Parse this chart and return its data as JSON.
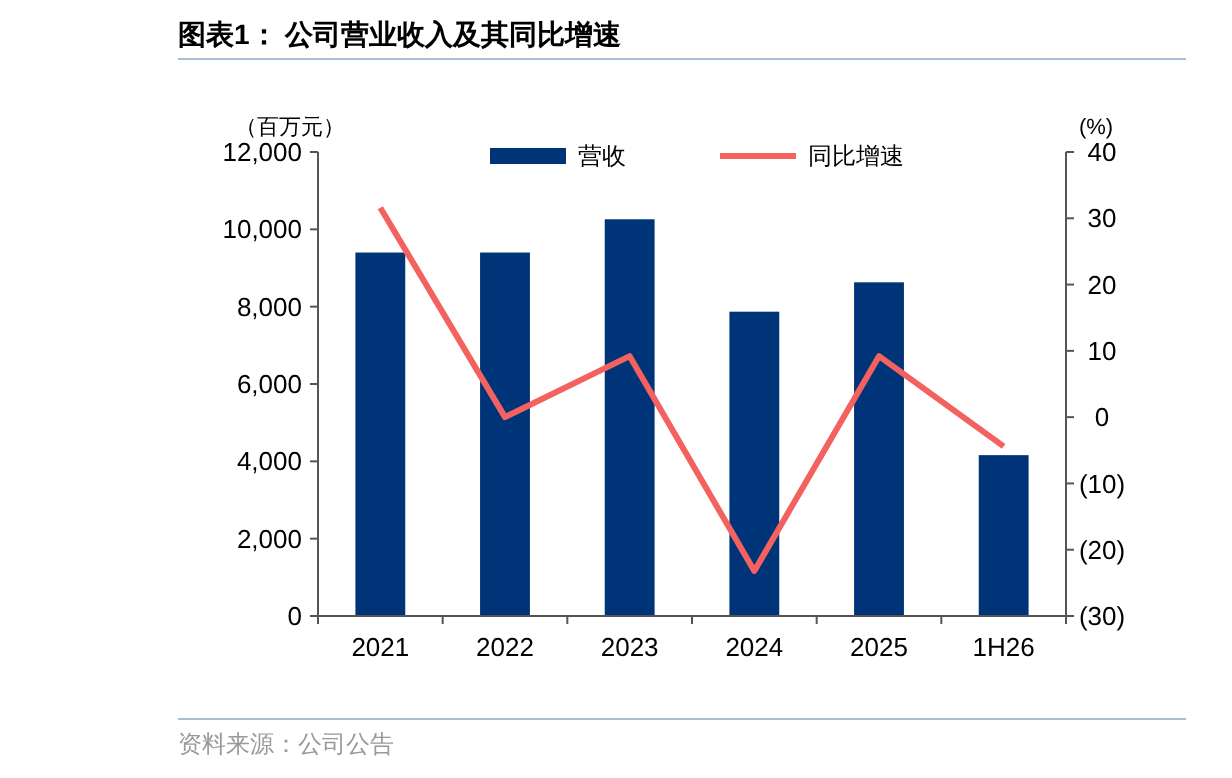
{
  "chart_data": {
    "type": "bar",
    "title": "图表1：  公司营业收入及其同比增速",
    "ylabel": "（百万元）",
    "y2label": "(%)",
    "categories": [
      "2021",
      "2022",
      "2023",
      "2024",
      "2025",
      "1H26"
    ],
    "series": [
      {
        "name": "营收",
        "color": "#003478",
        "values": [
          9400,
          9400,
          10260,
          7870,
          8630,
          4160
        ]
      },
      {
        "name": "同比增速",
        "type": "line",
        "axis": "y2",
        "color": "#f4625f",
        "values": [
          31.6,
          0.0,
          9.2,
          -23.2,
          9.2,
          -4.4
        ]
      }
    ],
    "ylim": [
      0,
      12000
    ],
    "yticks": [
      {
        "value": 0,
        "label": "0"
      },
      {
        "value": 2000,
        "label": "2,000"
      },
      {
        "value": 4000,
        "label": "4,000"
      },
      {
        "value": 6000,
        "label": "6,000"
      },
      {
        "value": 8000,
        "label": "8,000"
      },
      {
        "value": 10000,
        "label": "10,000"
      },
      {
        "value": 12000,
        "label": "12,000"
      }
    ],
    "y2lim": [
      -30,
      40
    ],
    "y2ticks": [
      {
        "value": -30,
        "label": "(30)"
      },
      {
        "value": -20,
        "label": "(20)"
      },
      {
        "value": -10,
        "label": "(10)"
      },
      0,
      10,
      20,
      30,
      40
    ],
    "legend": "top",
    "grid": false,
    "marker": "none",
    "line_style": "solid",
    "annotations": [
      "资料来源：公司公告"
    ]
  }
}
